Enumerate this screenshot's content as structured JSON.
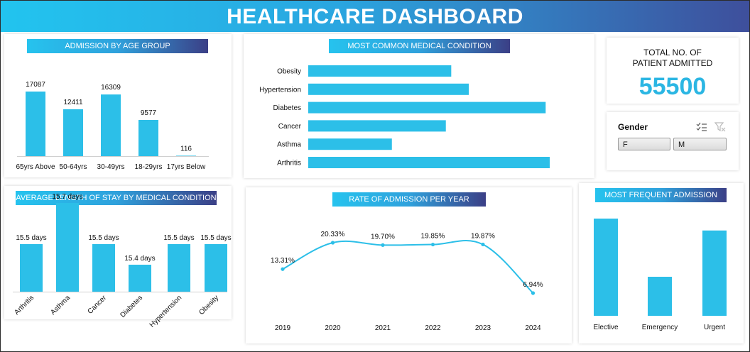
{
  "title": "HEALTHCARE DASHBOARD",
  "colors": {
    "bar": "#2cbfe8",
    "accent": "#2bb6e3",
    "header_start": "#22c4ef",
    "header_end": "#3e4f9c"
  },
  "kpi": {
    "label_line1": "TOTAL NO. OF",
    "label_line2": "PATIENT ADMITTED",
    "value": "55500"
  },
  "slicer": {
    "title": "Gender",
    "options": [
      "F",
      "M"
    ],
    "icons": [
      "multi-select-icon",
      "clear-filter-icon"
    ]
  },
  "chart_data": [
    {
      "id": "age",
      "type": "bar",
      "title": "ADMISSION BY AGE GROUP",
      "categories": [
        "65yrs Above",
        "50-64yrs",
        "30-49yrs",
        "18-29yrs",
        "17yrs Below"
      ],
      "values": [
        17087,
        12411,
        16309,
        9577,
        116
      ],
      "data_labels": [
        "17087",
        "12411",
        "16309",
        "9577",
        "116"
      ]
    },
    {
      "id": "condition",
      "type": "bar",
      "orientation": "horizontal",
      "title": "MOST COMMON MEDICAL CONDITION",
      "categories": [
        "Obesity",
        "Hypertension",
        "Diabetes",
        "Cancer",
        "Asthma",
        "Arthritis"
      ],
      "values": [
        5.3,
        5.95,
        8.8,
        5.1,
        3.1,
        8.95
      ]
    },
    {
      "id": "stay",
      "type": "bar",
      "title": "AVERAGE LENGTH OF STAY BY MEDICAL CONDITION",
      "categories": [
        "Arthritis",
        "Asthma",
        "Cancer",
        "Diabetes",
        "Hypertension",
        "Obesity"
      ],
      "values": [
        15.5,
        15.7,
        15.5,
        15.4,
        15.5,
        15.5
      ],
      "data_labels": [
        "15.5 days",
        "15.7 days",
        "15.5 days",
        "15.4 days",
        "15.5 days",
        "15.5 days"
      ]
    },
    {
      "id": "year",
      "type": "line",
      "title": "RATE OF ADMISSION PER YEAR",
      "categories": [
        "2019",
        "2020",
        "2021",
        "2022",
        "2023",
        "2024"
      ],
      "values": [
        13.31,
        20.33,
        19.7,
        19.85,
        19.87,
        6.94
      ],
      "data_labels": [
        "13.31%",
        "20.33%",
        "19.70%",
        "19.85%",
        "19.87%",
        "6.94%"
      ]
    },
    {
      "id": "admtype",
      "type": "bar",
      "title": "MOST FREQUENT ADMISSION TYPE",
      "categories": [
        "Elective",
        "Emergency",
        "Urgent"
      ],
      "values": [
        18655,
        18269,
        18576
      ]
    }
  ]
}
